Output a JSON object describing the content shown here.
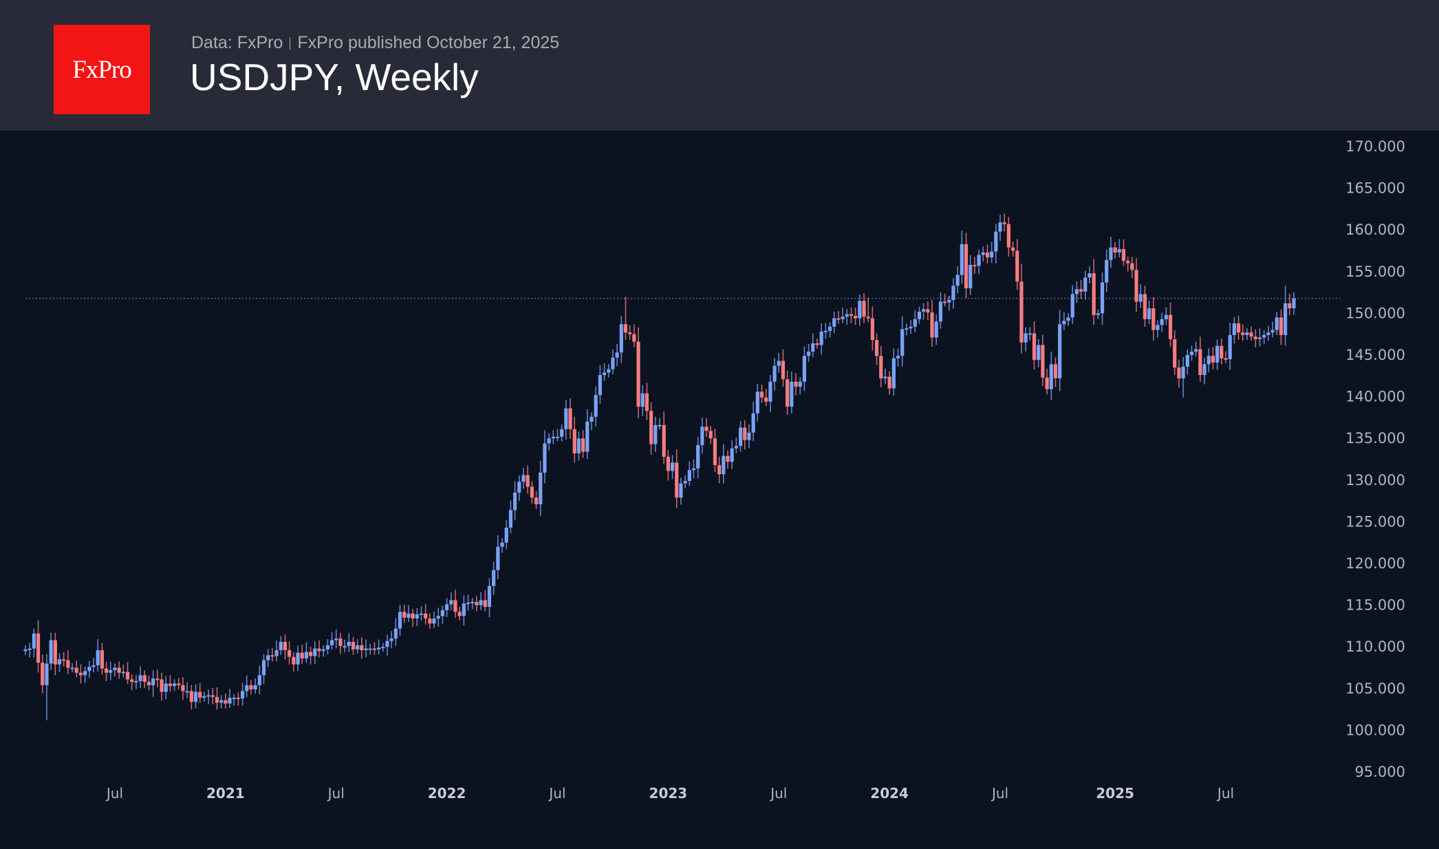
{
  "header": {
    "logo_text": "FxPro",
    "source": "Data: FxPro",
    "published": "FxPro published October 21, 2025",
    "title": "USDJPY, Weekly"
  },
  "colors": {
    "up": "#7aa2f7",
    "down": "#f77c82",
    "background": "#0c1320",
    "header": "#282b37",
    "last_price_line": "#4a6a90"
  },
  "chart_data": {
    "type": "candlestick",
    "title": "USDJPY, Weekly",
    "first_open": 109.5,
    "default_wick": 0.45,
    "ylim": [
      95,
      170
    ],
    "last_price": 151.8,
    "y_ticks": [
      "170.000",
      "165.000",
      "160.000",
      "155.000",
      "150.000",
      "145.000",
      "140.000",
      "135.000",
      "130.000",
      "125.000",
      "120.000",
      "115.000",
      "110.000",
      "105.000",
      "100.000",
      "95.000"
    ],
    "x_ticks": [
      {
        "label": "Jul",
        "week_index": 21,
        "year": false
      },
      {
        "label": "2021",
        "week_index": 47,
        "year": true
      },
      {
        "label": "Jul",
        "week_index": 73,
        "year": false
      },
      {
        "label": "2022",
        "week_index": 99,
        "year": true
      },
      {
        "label": "Jul",
        "week_index": 125,
        "year": false
      },
      {
        "label": "2023",
        "week_index": 151,
        "year": true
      },
      {
        "label": "Jul",
        "week_index": 177,
        "year": false
      },
      {
        "label": "2024",
        "week_index": 203,
        "year": true
      },
      {
        "label": "Jul",
        "week_index": 229,
        "year": false
      },
      {
        "label": "2025",
        "week_index": 256,
        "year": true
      },
      {
        "label": "Jul",
        "week_index": 282,
        "year": false
      }
    ],
    "close": [
      109.7,
      109.8,
      111.6,
      108.1,
      105.4,
      108.0,
      110.8,
      107.9,
      108.5,
      108.4,
      107.5,
      107.5,
      106.9,
      106.6,
      107.1,
      107.6,
      107.8,
      109.6,
      107.4,
      106.9,
      107.2,
      107.5,
      106.9,
      107.0,
      106.1,
      105.8,
      105.9,
      106.6,
      105.8,
      105.4,
      106.2,
      106.1,
      104.6,
      105.6,
      105.3,
      105.6,
      105.4,
      104.7,
      104.7,
      103.4,
      104.6,
      103.9,
      104.1,
      104.2,
      104.0,
      103.3,
      103.6,
      103.2,
      103.9,
      103.9,
      103.8,
      104.7,
      105.4,
      104.9,
      105.4,
      106.6,
      108.4,
      109.0,
      108.9,
      109.6,
      110.6,
      109.6,
      108.8,
      107.9,
      109.3,
      108.6,
      109.4,
      108.9,
      109.8,
      109.5,
      109.7,
      110.2,
      110.8,
      111.0,
      110.1,
      110.1,
      110.6,
      109.7,
      110.2,
      109.6,
      109.8,
      109.8,
      109.7,
      109.9,
      110.0,
      110.7,
      111.0,
      112.2,
      114.2,
      113.5,
      114.0,
      113.4,
      113.9,
      114.0,
      113.4,
      112.8,
      113.4,
      113.7,
      114.4,
      115.1,
      115.6,
      114.2,
      113.7,
      115.2,
      115.3,
      115.4,
      115.0,
      115.6,
      114.8,
      117.3,
      119.2,
      122.0,
      122.5,
      124.3,
      126.4,
      128.5,
      129.8,
      130.6,
      129.2,
      127.9,
      127.1,
      130.9,
      134.4,
      135.0,
      135.2,
      135.2,
      136.1,
      138.6,
      136.1,
      133.2,
      135.0,
      133.4,
      137.0,
      137.6,
      140.2,
      142.6,
      142.9,
      143.3,
      144.7,
      145.3,
      148.7,
      147.7,
      147.5,
      146.6,
      138.8,
      140.4,
      138.3,
      134.3,
      136.6,
      136.6,
      132.8,
      131.1,
      132.1,
      127.9,
      129.6,
      129.9,
      131.2,
      131.4,
      134.2,
      136.4,
      135.9,
      135.0,
      131.8,
      130.7,
      132.9,
      132.2,
      133.8,
      134.1,
      136.3,
      134.8,
      135.7,
      138.0,
      140.6,
      139.9,
      139.4,
      141.8,
      143.7,
      144.3,
      142.1,
      138.8,
      141.8,
      141.2,
      141.8,
      144.9,
      145.4,
      146.4,
      146.2,
      147.8,
      147.9,
      148.4,
      149.4,
      149.3,
      149.6,
      149.9,
      149.7,
      149.4,
      151.5,
      149.6,
      149.4,
      146.8,
      144.9,
      142.2,
      142.4,
      141.0,
      144.6,
      144.9,
      148.1,
      148.2,
      148.4,
      149.3,
      150.2,
      150.5,
      150.1,
      147.1,
      149.0,
      151.4,
      151.3,
      151.6,
      153.3,
      154.6,
      158.3,
      153.0,
      155.8,
      155.7,
      157.0,
      157.3,
      156.7,
      157.4,
      159.8,
      160.9,
      160.7,
      157.9,
      157.5,
      153.8,
      146.5,
      147.6,
      147.6,
      144.4,
      146.2,
      142.3,
      140.9,
      143.9,
      142.2,
      148.7,
      149.1,
      149.5,
      152.3,
      152.9,
      152.6,
      154.3,
      154.8,
      149.8,
      150.0,
      153.7,
      156.4,
      157.9,
      157.3,
      157.7,
      156.3,
      156.0,
      155.2,
      151.4,
      152.3,
      149.3,
      150.6,
      148.0,
      148.6,
      149.3,
      149.8,
      146.9,
      143.5,
      142.2,
      143.6,
      145.0,
      145.4,
      145.7,
      142.6,
      143.9,
      144.9,
      144.1,
      146.1,
      144.6,
      144.5,
      147.4,
      148.8,
      147.7,
      147.4,
      147.7,
      147.2,
      146.9,
      147.1,
      147.4,
      147.7,
      148.0,
      149.5,
      147.4,
      151.2,
      150.6,
      151.8
    ],
    "high_overrides": {
      "2": 112.2,
      "6": 111.7,
      "141": 151.95,
      "198": 151.9,
      "230": 161.95,
      "257": 158.9,
      "296": 153.3
    },
    "low_overrides": {
      "5": 101.2,
      "241": 139.6,
      "272": 139.9,
      "30": 104.0,
      "228": 156.0
    }
  }
}
